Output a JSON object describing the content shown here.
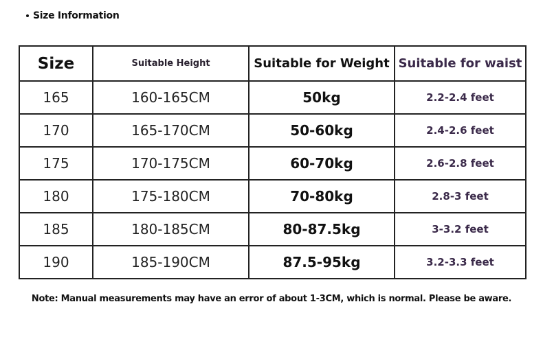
{
  "header": {
    "title": "Size Information"
  },
  "table": {
    "columns": [
      "Size",
      "Suitable Height",
      "Suitable for Weight",
      "Suitable for waist"
    ],
    "rows": [
      [
        "165",
        "160-165CM",
        "50kg",
        "2.2-2.4 feet"
      ],
      [
        "170",
        "165-170CM",
        "50-60kg",
        "2.4-2.6 feet"
      ],
      [
        "175",
        "170-175CM",
        "60-70kg",
        "2.6-2.8 feet"
      ],
      [
        "180",
        "175-180CM",
        "70-80kg",
        "2.8-3 feet"
      ],
      [
        "185",
        "180-185CM",
        "80-87.5kg",
        "3-3.2 feet"
      ],
      [
        "190",
        "185-190CM",
        "87.5-95kg",
        "3.2-3.3 feet"
      ]
    ]
  },
  "footer": {
    "note": "Note: Manual measurements may have an error of about 1-3CM, which is normal. Please be aware."
  }
}
